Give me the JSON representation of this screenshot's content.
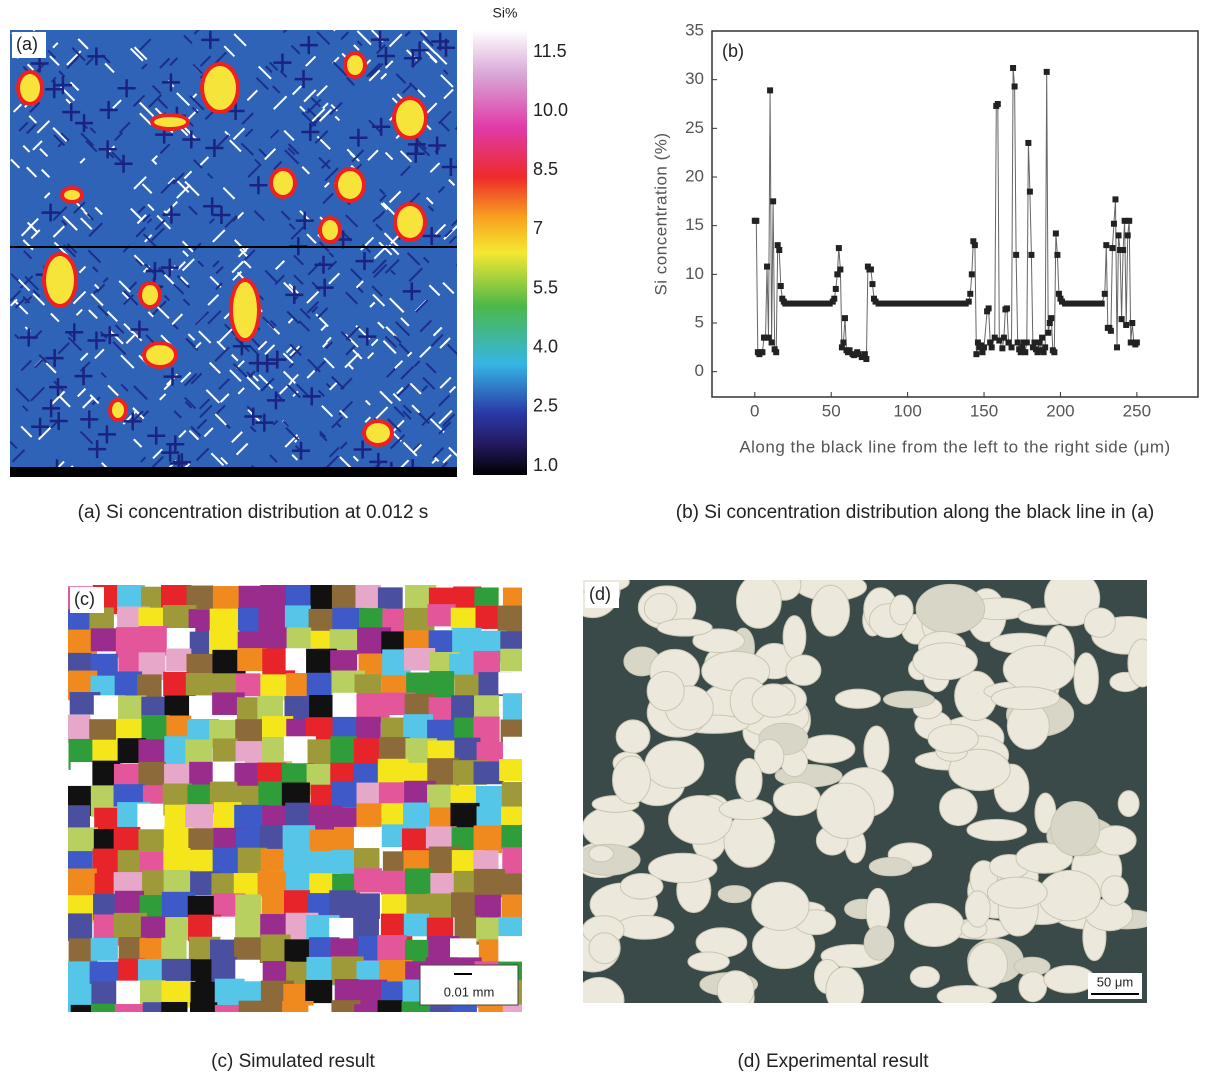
{
  "panels": [
    {
      "label": "(a)",
      "caption": "(a) Si concentration distribution at 0.012 s",
      "colorbar": {
        "title": "Si%",
        "ticks": [
          11.5,
          {
            "value": 10,
            "label": "10.0"
          },
          8.5,
          7,
          5.5,
          {
            "value": 4,
            "label": "4.0"
          },
          2.5,
          {
            "value": 1,
            "label": "1.0"
          }
        ]
      }
    },
    {
      "label": "(b)",
      "caption": "(b) Si concentration distribution along the black line in (a)"
    },
    {
      "label": "(c)",
      "caption": "(c) Simulated result",
      "scale_bar": "0.01 mm"
    },
    {
      "label": "(d)",
      "caption": "(d) Experimental result",
      "scale_bar": "50 μm"
    }
  ],
  "chart_data": {
    "type": "line",
    "x_label": "Along the black line from the left to the right side (μm)",
    "y_label": "Si concentration (%)",
    "x": [
      0,
      1,
      2,
      3,
      4,
      5,
      6,
      7,
      8,
      9,
      10,
      11,
      12,
      13,
      14,
      15,
      16,
      17,
      18,
      19,
      20,
      22,
      25,
      28,
      31,
      34,
      37,
      40,
      43,
      46,
      49,
      51,
      52,
      53,
      54,
      55,
      56,
      57,
      58,
      59,
      60,
      61,
      62,
      64,
      65,
      67,
      68,
      70,
      72,
      73,
      74,
      75,
      76,
      77,
      78,
      79,
      81,
      84,
      87,
      90,
      93,
      96,
      99,
      102,
      105,
      108,
      111,
      114,
      117,
      120,
      123,
      126,
      129,
      132,
      135,
      138,
      140,
      141,
      142,
      143,
      144,
      145,
      146,
      147,
      148,
      149,
      150,
      152,
      153,
      154,
      155,
      157,
      158,
      159,
      160,
      162,
      163,
      164,
      165,
      166,
      168,
      169,
      170,
      171,
      172,
      173,
      174,
      175,
      176,
      177,
      178,
      179,
      180,
      181,
      182,
      183,
      184,
      185,
      186,
      187,
      188,
      189,
      190,
      191,
      192,
      193,
      194,
      195,
      196,
      197,
      198,
      199,
      200,
      201,
      203,
      206,
      209,
      212,
      215,
      218,
      221,
      224,
      227,
      229,
      230,
      231,
      232,
      233,
      234,
      235,
      236,
      237,
      238,
      239,
      240,
      241,
      242,
      243,
      244,
      245,
      246,
      247,
      248,
      249,
      250
    ],
    "values": [
      15.5,
      15.5,
      2,
      1.8,
      2,
      2,
      3.5,
      3.5,
      10.8,
      3.5,
      28.9,
      3,
      17.5,
      2.3,
      2,
      13,
      12.5,
      8.8,
      7.5,
      7.2,
      7,
      7,
      7,
      7,
      7,
      7,
      7,
      7,
      7,
      7,
      7,
      7.2,
      7.5,
      8.5,
      10,
      12.7,
      10.5,
      2.5,
      3,
      5.5,
      2.2,
      2,
      2.2,
      1.8,
      1.7,
      2,
      1.8,
      1.5,
      1.8,
      1.3,
      10.8,
      10.5,
      10.5,
      9,
      7.5,
      7.2,
      7,
      7,
      7,
      7,
      7,
      7,
      7,
      7,
      7,
      7,
      7,
      7,
      7,
      7,
      7,
      7,
      7,
      7,
      7,
      7,
      7.2,
      8,
      10,
      13.4,
      13,
      1.8,
      3,
      2.5,
      2.7,
      2,
      2.5,
      6.2,
      6.5,
      3,
      2.5,
      3.5,
      27.3,
      27.5,
      3.2,
      2.4,
      3.5,
      6.4,
      6.5,
      3,
      2.5,
      31.2,
      29.3,
      12,
      3,
      2.3,
      2,
      2.5,
      3,
      2,
      3,
      23.5,
      18.5,
      12,
      2.5,
      3,
      2.3,
      2,
      3,
      2.2,
      3.5,
      2,
      2.5,
      30.8,
      4,
      5,
      5.5,
      2.2,
      2,
      14.2,
      12,
      8,
      7.5,
      7.2,
      7,
      7,
      7,
      7,
      7,
      7,
      7,
      7,
      7,
      8,
      13,
      4.5,
      4.5,
      4.2,
      12.7,
      15.2,
      17.7,
      2.5,
      14,
      12.5,
      5.4,
      12.5,
      15.5,
      4.8,
      14,
      15.5,
      3,
      5,
      3,
      2.8,
      3
    ],
    "color": "#666",
    "marker_color": "#222",
    "xlim": [
      -28,
      290
    ],
    "ylim": [
      -2.6,
      35
    ],
    "xticks": [
      0,
      50,
      100,
      150,
      200,
      250
    ],
    "yticks": [
      0,
      5,
      10,
      15,
      20,
      25,
      30,
      35
    ]
  }
}
